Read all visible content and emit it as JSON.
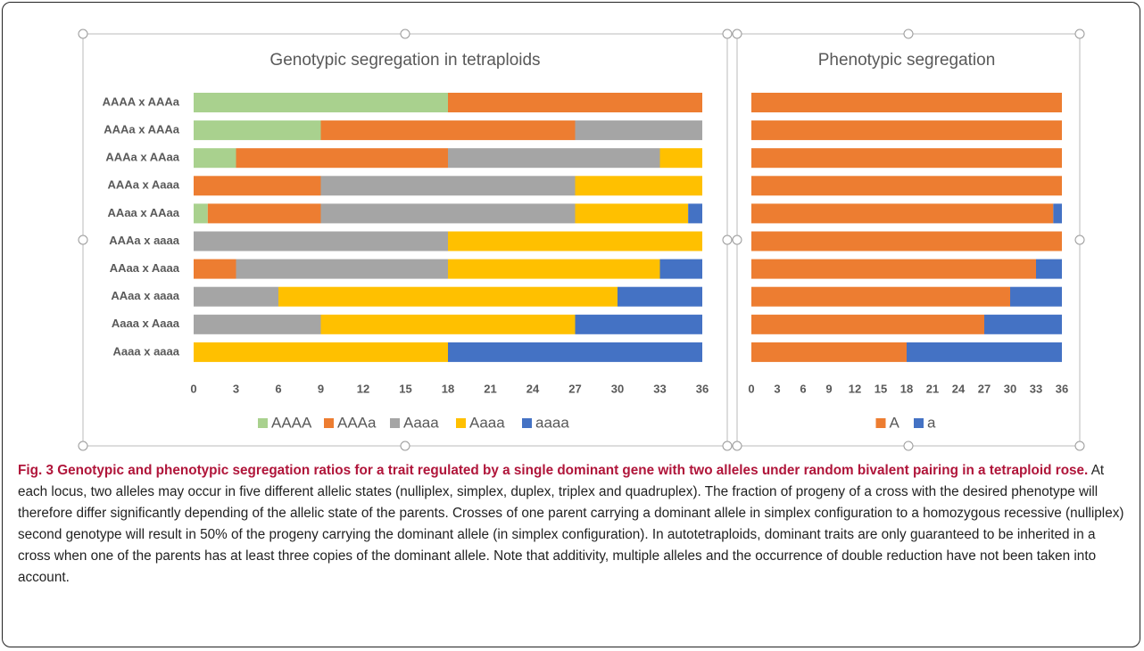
{
  "chart_data": [
    {
      "type": "stacked-barh",
      "title": "Genotypic segregation in tetraploids",
      "categories": [
        "AAAA x AAAa",
        "AAAa x AAAa",
        "AAAa x AAaa",
        "AAAa x Aaaa",
        "AAaa x AAaa",
        "AAAa x aaaa",
        "AAaa x Aaaa",
        "AAaa x aaaa",
        "Aaaa x Aaaa",
        "Aaaa x aaaa"
      ],
      "series": [
        {
          "name": "AAAA",
          "color": "#a9d18e",
          "values": [
            18,
            9,
            3,
            0,
            1,
            0,
            0,
            0,
            0,
            0
          ]
        },
        {
          "name": "AAAa",
          "color": "#ed7d31",
          "values": [
            18,
            18,
            15,
            9,
            8,
            0,
            3,
            0,
            0,
            0
          ]
        },
        {
          "name": "Aaaa",
          "color": "#a5a5a5",
          "values": [
            0,
            9,
            15,
            18,
            18,
            18,
            15,
            6,
            9,
            0
          ]
        },
        {
          "name": "Aaaa",
          "color": "#ffc000",
          "values": [
            0,
            0,
            3,
            9,
            8,
            18,
            15,
            24,
            18,
            18
          ]
        },
        {
          "name": "aaaa",
          "color": "#4472c4",
          "values": [
            0,
            0,
            0,
            0,
            1,
            0,
            3,
            6,
            9,
            18
          ]
        }
      ],
      "xlim": [
        0,
        36
      ],
      "xticks": [
        0,
        3,
        6,
        9,
        12,
        15,
        18,
        21,
        24,
        27,
        30,
        33,
        36
      ],
      "grid": false,
      "legend": "bottom"
    },
    {
      "type": "stacked-barh",
      "title": "Phenotypic segregation",
      "categories": [
        null,
        null,
        null,
        null,
        null,
        null,
        null,
        null,
        null,
        null
      ],
      "series": [
        {
          "name": "A",
          "color": "#ed7d31",
          "values": [
            36,
            36,
            36,
            36,
            35,
            36,
            33,
            30,
            27,
            18
          ]
        },
        {
          "name": "a",
          "color": "#4472c4",
          "values": [
            0,
            0,
            0,
            0,
            1,
            0,
            3,
            6,
            9,
            18
          ]
        }
      ],
      "xlim": [
        0,
        36
      ],
      "xticks": [
        0,
        3,
        6,
        9,
        12,
        15,
        18,
        21,
        24,
        27,
        30,
        33,
        36
      ],
      "grid": false,
      "legend": "bottom"
    }
  ],
  "caption": {
    "title": "Fig. 3 Genotypic and phenotypic segregation ratios for a trait regulated by a single dominant gene with two alleles under random bivalent pairing in a tetraploid rose.",
    "text": "At each locus, two alleles may occur in five different allelic states (nulliplex, simplex, duplex, triplex and quadruplex). The fraction of progeny of a cross with the desired phenotype will therefore differ significantly depending of the allelic state of the parents. Crosses of one parent carrying a dominant allele in simplex configuration to a homozygous recessive (nulliplex) second genotype will result in 50% of the progeny carrying the dominant allele (in simplex configuration). In autotetraploids, dominant traits are only guaranteed to be inherited in a cross when one of the parents has at least three copies of the dominant allele. Note that additivity, multiple alleles and the occurrence of double reduction have not been taken into account."
  }
}
